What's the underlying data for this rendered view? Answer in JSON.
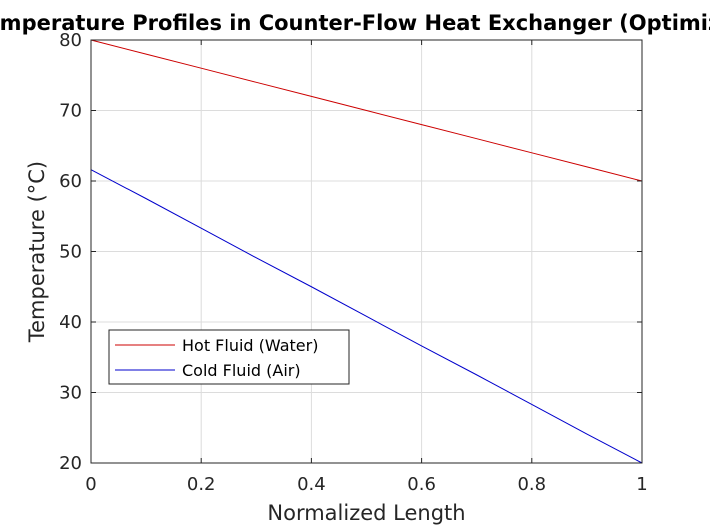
{
  "chart_data": {
    "type": "line",
    "title": "Temperature Profiles in Counter-Flow Heat Exchanger (Optimized)",
    "xlabel": "Normalized Length",
    "ylabel": "Temperature (°C)",
    "xlim": [
      0,
      1
    ],
    "ylim": [
      20,
      80
    ],
    "xticks": [
      0,
      0.2,
      0.4,
      0.6,
      0.8,
      1
    ],
    "xtick_labels": [
      "0",
      "0.2",
      "0.4",
      "0.6",
      "0.8",
      "1"
    ],
    "yticks": [
      20,
      30,
      40,
      50,
      60,
      70,
      80
    ],
    "ytick_labels": [
      "20",
      "30",
      "40",
      "50",
      "60",
      "70",
      "80"
    ],
    "grid": true,
    "legend_position": "lower-left",
    "series": [
      {
        "name": "Hot Fluid (Water)",
        "color": "#cc0000",
        "x": [
          0,
          0.1,
          0.2,
          0.3,
          0.4,
          0.5,
          0.6,
          0.7,
          0.8,
          0.9,
          1
        ],
        "y": [
          80,
          78,
          76,
          74,
          72,
          70,
          68,
          66,
          64,
          62,
          60
        ]
      },
      {
        "name": "Cold Fluid (Air)",
        "color": "#0000cc",
        "x": [
          0,
          0.1,
          0.2,
          0.3,
          0.4,
          0.5,
          0.6,
          0.7,
          0.8,
          0.9,
          1
        ],
        "y": [
          61.6,
          57.5,
          53.3,
          49.1,
          45.0,
          40.8,
          36.6,
          32.5,
          28.3,
          24.1,
          20
        ]
      }
    ]
  }
}
